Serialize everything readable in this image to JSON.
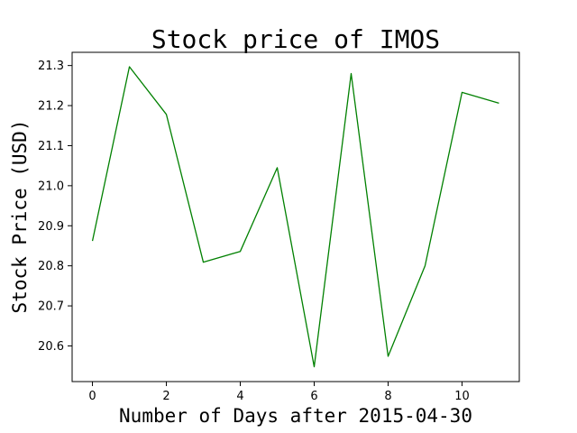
{
  "chart_data": {
    "type": "line",
    "title": "Stock price of IMOS",
    "xlabel": "Number of Days after 2015-04-30",
    "ylabel": "Stock Price (USD)",
    "x": [
      0,
      1,
      2,
      3,
      4,
      5,
      6,
      7,
      8,
      9,
      10,
      11
    ],
    "series": [
      {
        "values": [
          20.862,
          21.297,
          21.178,
          20.809,
          20.836,
          21.045,
          20.548,
          21.28,
          20.574,
          20.8,
          21.233,
          21.206
        ],
        "color": "#008000"
      }
    ],
    "xlim": [
      -0.55,
      11.55
    ],
    "ylim": [
      20.511,
      21.333
    ],
    "xticks": [
      0,
      2,
      4,
      6,
      8,
      10
    ],
    "yticks": [
      20.6,
      20.7,
      20.8,
      20.9,
      21.0,
      21.1,
      21.2,
      21.3
    ],
    "xtick_labels": [
      "0",
      "2",
      "4",
      "6",
      "8",
      "10"
    ],
    "ytick_labels": [
      "20.6",
      "20.7",
      "20.8",
      "20.9",
      "21.0",
      "21.1",
      "21.2",
      "21.3"
    ],
    "grid": false,
    "legend": "none"
  }
}
